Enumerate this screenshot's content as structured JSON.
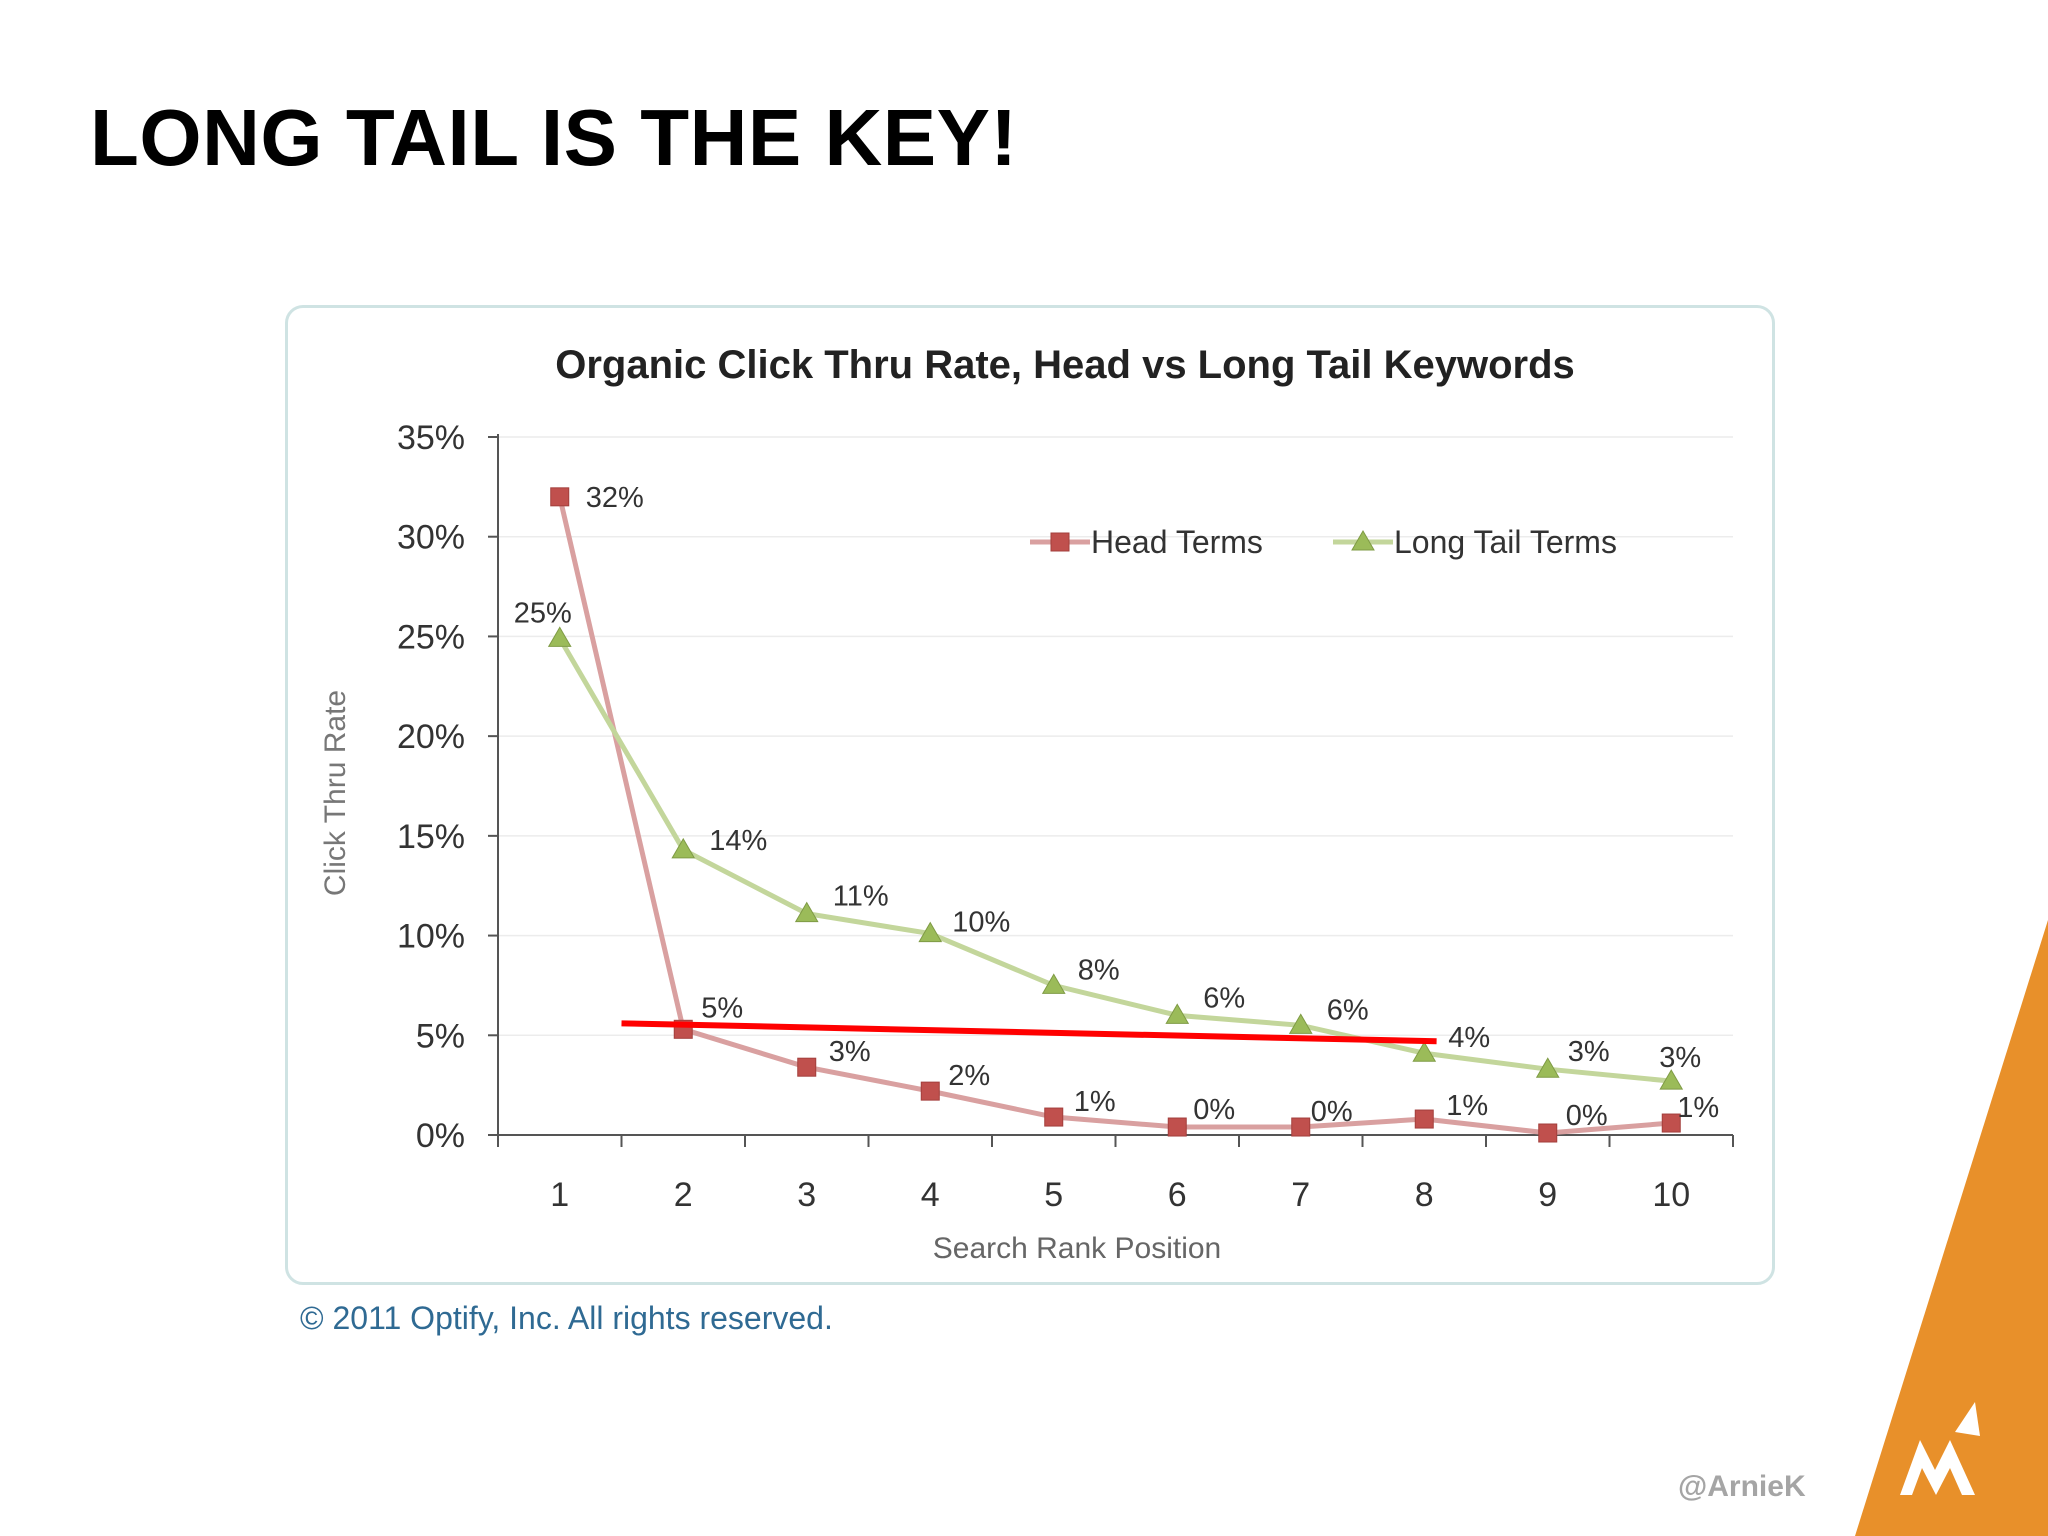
{
  "slide": {
    "title": "LONG TAIL IS THE KEY!",
    "copyright": "© 2011 Optify, Inc. All rights reserved.",
    "handle": "@ArnieK",
    "accent_color": "#e8902a"
  },
  "chart_data": {
    "type": "line",
    "title": "Organic Click Thru Rate, Head vs Long Tail Keywords",
    "xlabel": "Search Rank Position",
    "ylabel": "Click Thru Rate",
    "x": [
      1,
      2,
      3,
      4,
      5,
      6,
      7,
      8,
      9,
      10
    ],
    "ylim": [
      0,
      35
    ],
    "yticks": [
      "0%",
      "5%",
      "10%",
      "15%",
      "20%",
      "25%",
      "30%",
      "35%"
    ],
    "grid": true,
    "legend_position": "top-right",
    "series": [
      {
        "name": "Head Terms",
        "marker": "square",
        "color": "#c0504d",
        "line_color": "#d9a0a0",
        "values": [
          32,
          5.3,
          3.4,
          2.2,
          0.9,
          0.4,
          0.4,
          0.8,
          0.1,
          0.6
        ],
        "labels": [
          "32%",
          "5%",
          "3%",
          "2%",
          "1%",
          "0%",
          "0%",
          "1%",
          "0%",
          "1%"
        ]
      },
      {
        "name": "Long Tail Terms",
        "marker": "triangle",
        "color": "#9bbb59",
        "line_color": "#c3d69b",
        "values": [
          24.9,
          14.3,
          11.1,
          10.1,
          7.5,
          6,
          5.5,
          4.1,
          3.3,
          2.7
        ],
        "labels": [
          "25%",
          "14%",
          "11%",
          "10%",
          "8%",
          "6%",
          "6%",
          "4%",
          "3%",
          "3%"
        ]
      }
    ],
    "annotation_line": {
      "color": "#ff0000",
      "from": {
        "x": 1.5,
        "y": 5.6
      },
      "to": {
        "x": 8.1,
        "y": 4.7
      }
    }
  }
}
